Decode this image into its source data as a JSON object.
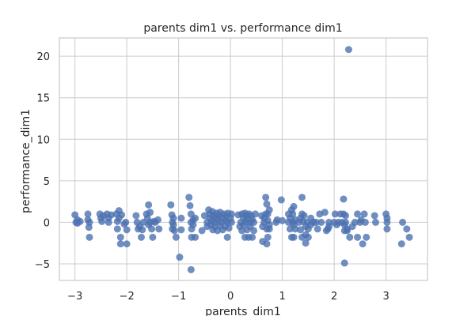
{
  "chart_data": {
    "type": "scatter",
    "title": "parents dim1 vs. performance dim1",
    "xlabel": "parents_dim1",
    "ylabel": "performance_dim1",
    "xlim": [
      -3.3,
      3.8
    ],
    "ylim": [
      -7,
      22.2
    ],
    "xticks": [
      -3,
      -2,
      -1,
      0,
      1,
      2,
      3
    ],
    "yticks": [
      -5,
      0,
      5,
      10,
      15,
      20
    ],
    "grid": true,
    "legend": "none",
    "marker_color": "#4c72b0",
    "marker_alpha": 0.8,
    "points": [
      [
        -3.0,
        0.9
      ],
      [
        -2.98,
        0.0
      ],
      [
        -2.95,
        0.3
      ],
      [
        -2.9,
        0.1
      ],
      [
        -2.95,
        -0.1
      ],
      [
        -2.75,
        1.0
      ],
      [
        -2.75,
        0.3
      ],
      [
        -2.73,
        -0.6
      ],
      [
        -2.72,
        0.0
      ],
      [
        -2.72,
        -1.8
      ],
      [
        -2.52,
        1.0
      ],
      [
        -2.5,
        0.5
      ],
      [
        -2.48,
        0.1
      ],
      [
        -2.45,
        0.8
      ],
      [
        -2.38,
        1.0
      ],
      [
        -2.35,
        0.0
      ],
      [
        -2.35,
        0.5
      ],
      [
        -2.3,
        0.9
      ],
      [
        -2.2,
        1.0
      ],
      [
        -2.18,
        0.1
      ],
      [
        -2.18,
        -0.8
      ],
      [
        -2.15,
        0.5
      ],
      [
        -2.15,
        1.4
      ],
      [
        -2.12,
        -1.8
      ],
      [
        -2.12,
        -2.6
      ],
      [
        -2.1,
        0.9
      ],
      [
        -2.05,
        -0.2
      ],
      [
        -2.02,
        0.0
      ],
      [
        -2.0,
        -0.9
      ],
      [
        -2.0,
        -2.6
      ],
      [
        -1.82,
        0.8
      ],
      [
        -1.8,
        0.0
      ],
      [
        -1.78,
        -0.8
      ],
      [
        -1.75,
        -0.5
      ],
      [
        -1.72,
        -1.8
      ],
      [
        -1.7,
        -0.9
      ],
      [
        -1.68,
        0.0
      ],
      [
        -1.62,
        1.0
      ],
      [
        -1.6,
        0.5
      ],
      [
        -1.58,
        2.1
      ],
      [
        -1.58,
        -0.3
      ],
      [
        -1.55,
        0.0
      ],
      [
        -1.55,
        1.2
      ],
      [
        -1.52,
        -0.8
      ],
      [
        -1.5,
        -1.8
      ],
      [
        -1.48,
        0.1
      ],
      [
        -1.45,
        0.0
      ],
      [
        -1.4,
        0.3
      ],
      [
        -1.38,
        -0.8
      ],
      [
        -1.15,
        2.1
      ],
      [
        -1.13,
        0.9
      ],
      [
        -1.12,
        0.0
      ],
      [
        -1.12,
        -0.8
      ],
      [
        -1.1,
        -0.3
      ],
      [
        -1.1,
        0.5
      ],
      [
        -1.08,
        -1.0
      ],
      [
        -1.05,
        -1.8
      ],
      [
        -0.98,
        -4.2
      ],
      [
        -0.95,
        0.5
      ],
      [
        -0.95,
        -0.9
      ],
      [
        -0.8,
        3.0
      ],
      [
        -0.78,
        2.0
      ],
      [
        -0.76,
        1.0
      ],
      [
        -0.76,
        0.0
      ],
      [
        -0.75,
        -0.8
      ],
      [
        -0.76,
        -5.7
      ],
      [
        -0.75,
        -1.8
      ],
      [
        -0.72,
        0.3
      ],
      [
        -0.72,
        -0.3
      ],
      [
        -0.68,
        0.5
      ],
      [
        -0.68,
        -1.8
      ],
      [
        -0.55,
        -1.0
      ],
      [
        -0.5,
        0.8
      ],
      [
        -0.45,
        0.0
      ],
      [
        -0.45,
        -0.5
      ],
      [
        -0.42,
        1.5
      ],
      [
        -0.4,
        1.0
      ],
      [
        -0.4,
        0.5
      ],
      [
        -0.38,
        -0.3
      ],
      [
        -0.36,
        0.2
      ],
      [
        -0.35,
        1.3
      ],
      [
        -0.34,
        -0.9
      ],
      [
        -0.32,
        0.8
      ],
      [
        -0.3,
        0.0
      ],
      [
        -0.3,
        -0.5
      ],
      [
        -0.28,
        0.6
      ],
      [
        -0.27,
        1.1
      ],
      [
        -0.25,
        -1.0
      ],
      [
        -0.24,
        0.3
      ],
      [
        -0.22,
        0.8
      ],
      [
        -0.2,
        -0.4
      ],
      [
        -0.2,
        1.2
      ],
      [
        -0.18,
        0.0
      ],
      [
        -0.15,
        0.5
      ],
      [
        -0.15,
        -0.9
      ],
      [
        -0.13,
        1.0
      ],
      [
        -0.1,
        0.2
      ],
      [
        -0.1,
        -0.5
      ],
      [
        -0.08,
        0.8
      ],
      [
        -0.06,
        -1.8
      ],
      [
        -0.05,
        1.1
      ],
      [
        -0.05,
        0.0
      ],
      [
        -0.03,
        -0.7
      ],
      [
        0.0,
        0.5
      ],
      [
        0.02,
        1.0
      ],
      [
        0.02,
        0.0
      ],
      [
        0.15,
        0.9
      ],
      [
        0.18,
        -0.5
      ],
      [
        0.2,
        0.0
      ],
      [
        0.22,
        1.0
      ],
      [
        0.22,
        -1.0
      ],
      [
        0.25,
        0.5
      ],
      [
        0.25,
        -0.3
      ],
      [
        0.28,
        1.1
      ],
      [
        0.28,
        -1.8
      ],
      [
        0.3,
        0.8
      ],
      [
        0.3,
        0.0
      ],
      [
        0.32,
        -0.9
      ],
      [
        0.32,
        0.4
      ],
      [
        0.35,
        -1.8
      ],
      [
        0.36,
        1.0
      ],
      [
        0.38,
        -0.5
      ],
      [
        0.38,
        0.0
      ],
      [
        0.4,
        0.8
      ],
      [
        0.42,
        -1.8
      ],
      [
        0.42,
        0.3
      ],
      [
        0.45,
        -1.0
      ],
      [
        0.45,
        0.0
      ],
      [
        0.48,
        1.0
      ],
      [
        0.6,
        0.8
      ],
      [
        0.62,
        -0.5
      ],
      [
        0.62,
        -2.3
      ],
      [
        0.65,
        0.5
      ],
      [
        0.65,
        0.0
      ],
      [
        0.68,
        1.0
      ],
      [
        0.68,
        3.0
      ],
      [
        0.7,
        2.2
      ],
      [
        0.7,
        -0.8
      ],
      [
        0.7,
        -2.6
      ],
      [
        0.72,
        1.0
      ],
      [
        0.72,
        0.2
      ],
      [
        0.72,
        -1.8
      ],
      [
        0.75,
        -0.3
      ],
      [
        0.75,
        1.5
      ],
      [
        0.75,
        -0.8
      ],
      [
        0.88,
        0.0
      ],
      [
        0.9,
        0.3
      ],
      [
        0.98,
        2.7
      ],
      [
        1.0,
        0.2
      ],
      [
        1.12,
        1.0
      ],
      [
        1.12,
        0.0
      ],
      [
        1.15,
        -0.8
      ],
      [
        1.15,
        0.5
      ],
      [
        1.18,
        1.5
      ],
      [
        1.18,
        -1.8
      ],
      [
        1.2,
        0.0
      ],
      [
        1.2,
        1.0
      ],
      [
        1.22,
        -0.3
      ],
      [
        1.22,
        1.9
      ],
      [
        1.22,
        -1.8
      ],
      [
        1.25,
        0.3
      ],
      [
        1.25,
        -0.8
      ],
      [
        1.32,
        0.0
      ],
      [
        1.35,
        0.5
      ],
      [
        1.35,
        -0.9
      ],
      [
        1.38,
        1.0
      ],
      [
        1.38,
        -1.8
      ],
      [
        1.38,
        3.0
      ],
      [
        1.4,
        0.1
      ],
      [
        1.42,
        0.8
      ],
      [
        1.45,
        -0.5
      ],
      [
        1.45,
        -1.5
      ],
      [
        1.45,
        -2.5
      ],
      [
        1.48,
        0.0
      ],
      [
        1.5,
        -0.8
      ],
      [
        1.5,
        -1.8
      ],
      [
        1.55,
        0.5
      ],
      [
        1.55,
        -0.3
      ],
      [
        1.6,
        0.0
      ],
      [
        1.65,
        0.0
      ],
      [
        1.68,
        -0.8
      ],
      [
        1.72,
        1.0
      ],
      [
        1.75,
        0.0
      ],
      [
        1.82,
        1.2
      ],
      [
        1.85,
        -1.0
      ],
      [
        1.88,
        -0.8
      ],
      [
        1.9,
        0.0
      ],
      [
        1.9,
        -0.5
      ],
      [
        2.0,
        0.0
      ],
      [
        2.02,
        1.0
      ],
      [
        2.05,
        -0.3
      ],
      [
        2.08,
        0.0
      ],
      [
        2.12,
        1.0
      ],
      [
        2.15,
        0.0
      ],
      [
        2.18,
        1.0
      ],
      [
        2.18,
        2.8
      ],
      [
        2.2,
        -0.3
      ],
      [
        2.2,
        -1.0
      ],
      [
        2.2,
        -4.9
      ],
      [
        2.22,
        0.8
      ],
      [
        2.22,
        0.0
      ],
      [
        2.25,
        -0.8
      ],
      [
        2.25,
        -1.0
      ],
      [
        2.28,
        20.8
      ],
      [
        2.3,
        -1.8
      ],
      [
        2.35,
        -0.5
      ],
      [
        2.4,
        0.0
      ],
      [
        2.45,
        1.0
      ],
      [
        2.45,
        -1.8
      ],
      [
        2.5,
        0.0
      ],
      [
        2.52,
        0.3
      ],
      [
        2.55,
        -2.6
      ],
      [
        2.58,
        1.0
      ],
      [
        2.6,
        0.0
      ],
      [
        2.62,
        -1.8
      ],
      [
        2.78,
        0.8
      ],
      [
        2.8,
        0.0
      ],
      [
        3.0,
        1.0
      ],
      [
        3.02,
        0.0
      ],
      [
        3.02,
        -0.8
      ],
      [
        3.02,
        0.5
      ],
      [
        3.3,
        -2.6
      ],
      [
        3.32,
        0.0
      ],
      [
        3.4,
        -0.8
      ],
      [
        3.45,
        -1.8
      ]
    ]
  }
}
